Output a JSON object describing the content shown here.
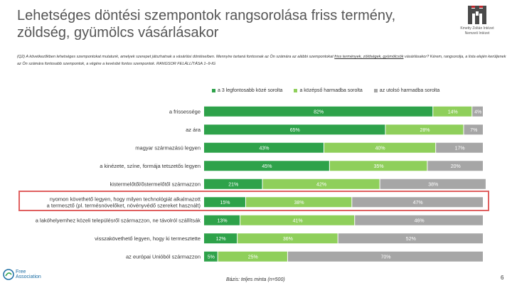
{
  "title": "Lehetséges döntési szempontok rangsorolása friss termény, zöldség, gyümölcs vásárlásakor",
  "question": {
    "part1": "(Q2) A következőkben lehetséges szempontokat mutatunk, amelyek szerepet játszhatnak a vásárlási döntéseiben. Mennyire tartaná fontosnak az Ön számára az alábbi szempontokat",
    "underlined": "friss termények, zöldségek, gyümölcsök",
    "part2": "vásárlásakor? Kérem, rangsorolja, a lista elején kerüljenek az Ön számára fontosabb szempontok, a végére a kevésbé fontos szempontok. RANGSOR FELÁLLÍTÁSA 1–9-IG"
  },
  "logo_text": [
    "Kmetty Zoltán Intézet",
    "Nemzeti Intézet"
  ],
  "brand": {
    "line1": "Free",
    "line2": "Association"
  },
  "footnote": "Bázis: teljes minta (n=500)",
  "page_number": "6",
  "colors": {
    "s1": "#2ea24a",
    "s2": "#8fcf5b",
    "s3": "#a6a6a6",
    "highlight": "#e06060"
  },
  "chart_data": {
    "type": "bar",
    "orientation": "horizontal",
    "stacked": true,
    "percent_stacked": true,
    "categories": [
      "a frissessége",
      "az ára",
      "magyar származású legyen",
      "a kinézete, színe, formája tetszetős legyen",
      "kistermelőtől/őstermelőtől származzon",
      "nyomon követhető legyen, hogy milyen technológiát alkalmaztott a termesztő (pl. termésnövelőket, növényvédő szereket használt)",
      "a lakóhelyemhez közeli településről származzon, ne távolról szállítsák",
      "visszakövethető legyen, hogy ki termesztette",
      "az európai Unióból származzon"
    ],
    "category_lines": [
      [
        "a frissessége"
      ],
      [
        "az ára"
      ],
      [
        "magyar származású legyen"
      ],
      [
        "a kinézete, színe, formája tetszetős legyen"
      ],
      [
        "kistermelőtől/őstermelőtől származzon"
      ],
      [
        "nyomon követhető legyen, hogy milyen technológiát alkalmazott",
        "a termesztő (pl. termésnövelőket, növényvédő szereket használt)"
      ],
      [
        "a lakóhelyemhez közeli településről származzon, ne távolról szállítsák"
      ],
      [
        "visszakövethető legyen, hogy ki termesztette"
      ],
      [
        "az európai Unióból származzon"
      ]
    ],
    "series": [
      {
        "name": "a 3 legfontosabb közé sorolta",
        "values": [
          82,
          65,
          43,
          45,
          21,
          15,
          13,
          12,
          5
        ]
      },
      {
        "name": "a középső harmadba sorolta",
        "values": [
          14,
          28,
          40,
          35,
          42,
          38,
          41,
          36,
          25
        ]
      },
      {
        "name": "az utolsó harmadba sorolta",
        "values": [
          4,
          7,
          17,
          20,
          38,
          47,
          46,
          52,
          70
        ]
      }
    ],
    "value_labels": [
      [
        "82%",
        "14%",
        "4%"
      ],
      [
        "65%",
        "28%",
        "7%"
      ],
      [
        "43%",
        "40%",
        "17%"
      ],
      [
        "45%",
        "35%",
        "20%"
      ],
      [
        "21%",
        "42%",
        "38%"
      ],
      [
        "15%",
        "38%",
        "47%"
      ],
      [
        "13%",
        "41%",
        "46%"
      ],
      [
        "12%",
        "36%",
        "52%"
      ],
      [
        "5%",
        "25%",
        "70%"
      ]
    ],
    "highlighted_category_index": 5,
    "xlim": [
      0,
      100
    ]
  }
}
